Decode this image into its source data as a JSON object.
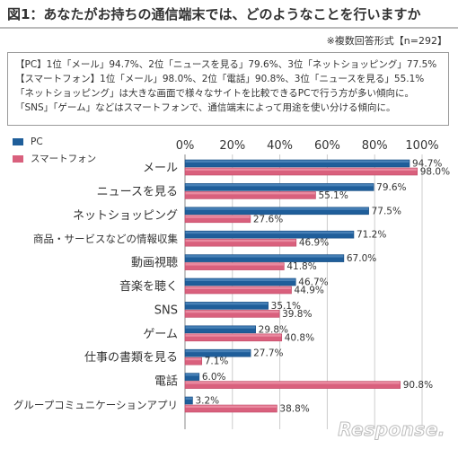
{
  "title": "図1：あなたがお持ちの通信端末では、どのようなことを行いますか",
  "note": "※複数回答形式【n=292】",
  "summary_lines": [
    "【PC】1位「メール」94.7%、2位「ニュースを見る」79.6%、3位「ネットショッピング」77.5%",
    "【スマートフォン】1位「メール」98.0%、2位「電話」90.8%、3位「ニュースを見る」55.1%",
    "「ネットショッピング」は大きな画面で様々なサイトを比較できるPCで行う方が多い傾向に。",
    "「SNS」「ゲーム」などはスマートフォンで、通信端末によって用途を使い分ける傾向に。"
  ],
  "legend": [
    {
      "label": "PC",
      "color": "#1f5e9a"
    },
    {
      "label": "スマートフォン",
      "color": "#d9607d"
    }
  ],
  "watermark": "Response.",
  "chart_data": {
    "type": "bar",
    "orientation": "horizontal",
    "categories": [
      "メール",
      "ニュースを見る",
      "ネットショッピング",
      "商品・サービスなどの情報収集",
      "動画視聴",
      "音楽を聴く",
      "SNS",
      "ゲーム",
      "仕事の書類を見る",
      "電話",
      "グループコミュニケーションアプリ"
    ],
    "series": [
      {
        "name": "PC",
        "values": [
          94.7,
          79.6,
          77.5,
          71.2,
          67.0,
          46.7,
          35.1,
          29.8,
          27.7,
          6.0,
          3.2
        ],
        "color": "#1f5e9a"
      },
      {
        "name": "スマートフォン",
        "values": [
          98.0,
          55.1,
          27.6,
          46.9,
          41.8,
          44.9,
          39.8,
          40.8,
          7.1,
          90.8,
          38.8
        ],
        "color": "#d9607d"
      }
    ],
    "value_labels": {
      "PC": [
        "94.7%",
        "79.6%",
        "77.5%",
        "71.2%",
        "67.0%",
        "46.7%",
        "35.1%",
        "29.8%",
        "27.7%",
        "6.0%",
        "3.2%"
      ],
      "スマートフォン": [
        "98.0%",
        "55.1%",
        "27.6%",
        "46.9%",
        "41.8%",
        "44.9%",
        "39.8%",
        "40.8%",
        "7.1%",
        "90.8%",
        "38.8%"
      ]
    },
    "xticks": [
      "0%",
      "20%",
      "40%",
      "60%",
      "80%",
      "100%"
    ],
    "xlim": [
      0,
      100
    ],
    "grid": true,
    "legend_position": "top-left"
  }
}
